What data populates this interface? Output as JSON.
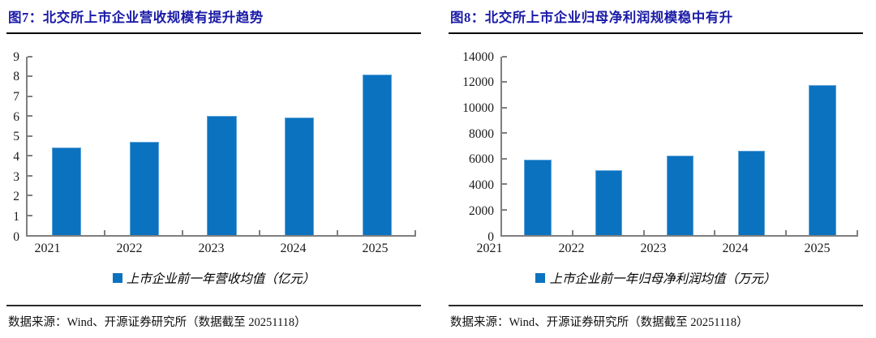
{
  "colors": {
    "bar_blue": "#0b72c0",
    "title_navy": "#1b1ba8",
    "axis_gray": "#7f7f7f"
  },
  "figures": [
    {
      "title": "图7：北交所上市企业营收规模有提升趋势",
      "legend": "上市企业前一年营收均值（亿元）",
      "source": "数据来源：Wind、开源证券研究所（数据截至 20251118）"
    },
    {
      "title": "图8：北交所上市企业归母净利润规模稳中有升",
      "legend": "上市企业前一年归母净利润均值（万元）",
      "source": "数据来源：Wind、开源证券研究所（数据截至 20251118）"
    }
  ],
  "chart_data": [
    {
      "type": "bar",
      "title": "图7：北交所上市企业营收规模有提升趋势",
      "categories": [
        "2021",
        "2022",
        "2023",
        "2024",
        "2025"
      ],
      "values": [
        4.4,
        4.7,
        6.0,
        5.95,
        8.1
      ],
      "legend": [
        "上市企业前一年营收均值（亿元）"
      ],
      "xlabel": "",
      "ylabel": "",
      "ylim": [
        0,
        9
      ],
      "ytick_step": 1,
      "grid": false,
      "legend_position": "bottom",
      "bar_color": "#0b72c0"
    },
    {
      "type": "bar",
      "title": "图8：北交所上市企业归母净利润规模稳中有升",
      "categories": [
        "2021",
        "2022",
        "2023",
        "2024",
        "2025"
      ],
      "values": [
        5900,
        5100,
        6250,
        6600,
        11800
      ],
      "legend": [
        "上市企业前一年归母净利润均值（万元）"
      ],
      "xlabel": "",
      "ylabel": "",
      "ylim": [
        0,
        14000
      ],
      "ytick_step": 2000,
      "grid": false,
      "legend_position": "bottom",
      "bar_color": "#0b72c0"
    }
  ]
}
